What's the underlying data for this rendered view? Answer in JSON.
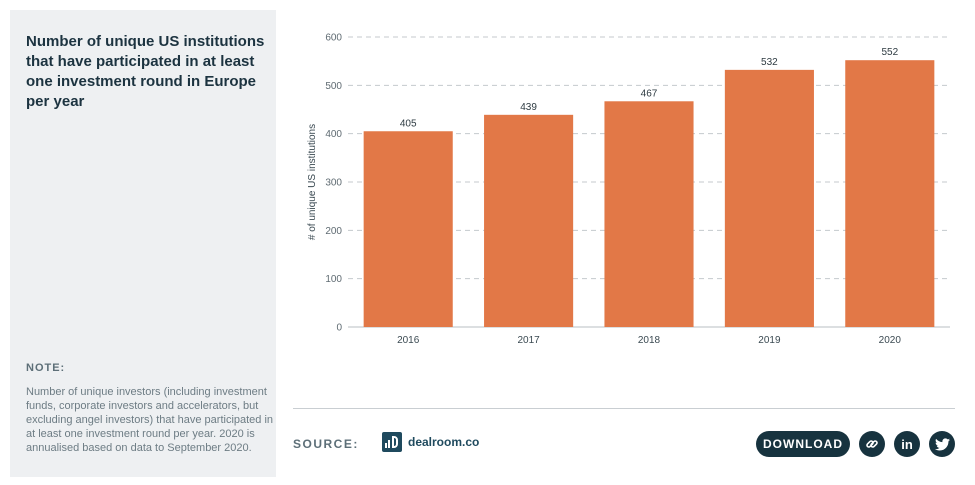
{
  "panel": {
    "title": "Number of unique US institutions that have participated in at least one investment round in Europe per year",
    "note_label": "NOTE:",
    "note_text": "Number of unique investors (including investment funds, corporate investors and accelerators, but excluding angel investors) that have participated in at least one investment round per year. 2020 is annualised based on data to September 2020."
  },
  "footer": {
    "source_label": "SOURCE:",
    "source_name": "dealroom.co",
    "download_label": "DOWNLOAD",
    "share_icons": [
      "link-icon",
      "linkedin-icon",
      "twitter-icon"
    ],
    "linkedin_text": "in"
  },
  "colors": {
    "bar": "#e27847",
    "panel_bg": "#eef0f2",
    "button_bg": "#17333f",
    "brand": "#1f4a5e"
  },
  "chart_data": {
    "type": "bar",
    "title": "Number of unique US institutions that have participated in at least one investment round in Europe per year",
    "categories": [
      "2016",
      "2017",
      "2018",
      "2019",
      "2020"
    ],
    "values": [
      405,
      439,
      467,
      532,
      552
    ],
    "xlabel": "",
    "ylabel": "# of unique US institutions",
    "ylim": [
      0,
      600
    ],
    "yticks": [
      0,
      100,
      200,
      300,
      400,
      500,
      600
    ],
    "grid": true,
    "data_labels": true
  }
}
